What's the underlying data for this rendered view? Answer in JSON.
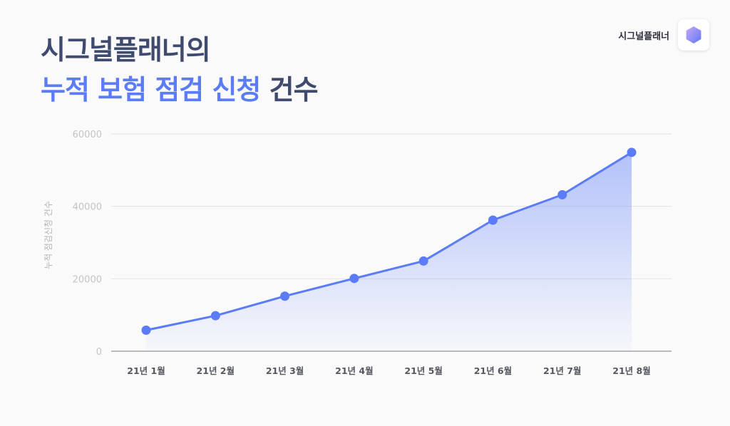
{
  "header": {
    "title_line1": "시그널플래너의",
    "title_accent": "누적 보험 점검 신청",
    "title_suffix": "건수"
  },
  "brand": {
    "name": "시그널플래너",
    "logo_icon": "hexagon-logo-icon"
  },
  "colors": {
    "accent": "#5b7cf6",
    "title": "#3e4a6e",
    "line": "#5b7cf6"
  },
  "chart_data": {
    "type": "area",
    "categories": [
      "21년 1월",
      "21년 2월",
      "21년 3월",
      "21년 4월",
      "21년 5월",
      "21년 6월",
      "21년 7월",
      "21년 8월"
    ],
    "series": [
      {
        "values": [
          5800,
          9800,
          15200,
          20100,
          24900,
          36200,
          43200,
          54900
        ]
      }
    ],
    "ylabel": "누적 점검신청 건수",
    "xlabel": "",
    "yticks": [
      0,
      20000,
      40000,
      60000
    ],
    "ylim": [
      0,
      60000
    ],
    "grid": true,
    "markers": true
  }
}
